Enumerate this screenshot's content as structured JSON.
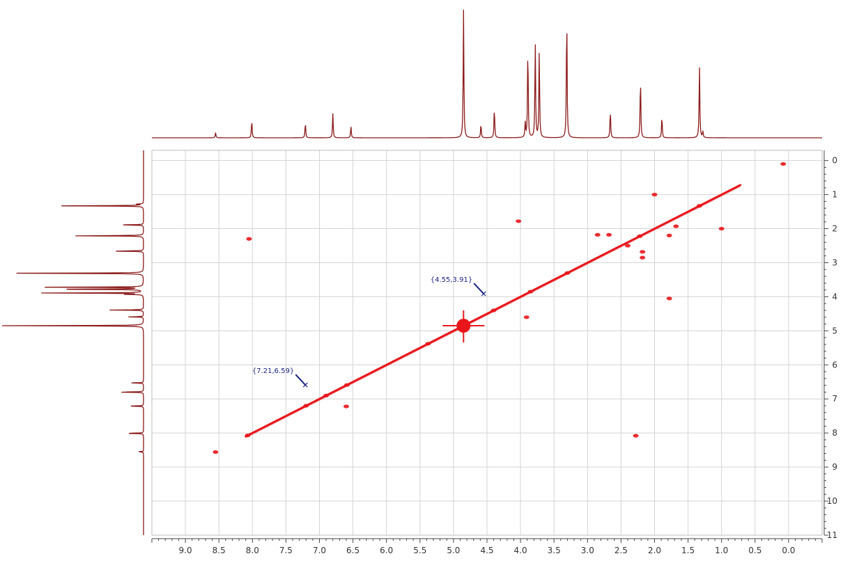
{
  "chart_data": {
    "type": "scatter",
    "subtype": "2D NMR COSY contour plot with projections",
    "title": "",
    "xlabel": "",
    "ylabel": "",
    "x_axis": {
      "range": [
        9.5,
        -0.5
      ],
      "reversed": true,
      "ticks": [
        9.0,
        8.5,
        8.0,
        7.5,
        7.0,
        6.5,
        6.0,
        5.5,
        5.0,
        4.5,
        4.0,
        3.5,
        3.0,
        2.5,
        2.0,
        1.5,
        1.0,
        0.5,
        0.0
      ],
      "tick_labels": [
        "9.0",
        "8.5",
        "8.0",
        "7.5",
        "7.0",
        "6.5",
        "6.0",
        "5.5",
        "5.0",
        "4.5",
        "4.0",
        "3.5",
        "3.0",
        "2.5",
        "2.0",
        "1.5",
        "1.0",
        "0.5",
        "0.0"
      ]
    },
    "y_axis": {
      "range": [
        -0.3,
        11
      ],
      "reversed": true,
      "position": "right",
      "ticks": [
        0,
        1,
        2,
        3,
        4,
        5,
        6,
        7,
        8,
        9,
        10,
        11
      ],
      "tick_labels": [
        "0",
        "1",
        "2",
        "3",
        "4",
        "5",
        "6",
        "7",
        "8",
        "9",
        "10",
        "11"
      ]
    },
    "grid": true,
    "colors": {
      "contour": "#e8161b",
      "spectrum": "#8b1a1a",
      "annotation": "#1a237e",
      "grid": "#d4d4d4",
      "axis": "#444444"
    },
    "diagonal": {
      "from": [
        8.1,
        8.1
      ],
      "to": [
        0.72,
        0.72
      ]
    },
    "annotations": [
      {
        "label": "{7.21,6.59}",
        "x": 7.21,
        "y": 6.59
      },
      {
        "label": "{4.55,3.91}",
        "x": 4.55,
        "y": 3.91
      }
    ],
    "spectrum_1d": [
      {
        "ppm": 8.55,
        "intensity": 0.04
      },
      {
        "ppm": 8.01,
        "intensity": 0.14
      },
      {
        "ppm": 7.21,
        "intensity": 0.12
      },
      {
        "ppm": 6.8,
        "intensity": 0.19
      },
      {
        "ppm": 6.53,
        "intensity": 0.09
      },
      {
        "ppm": 4.85,
        "intensity": 1.0
      },
      {
        "ppm": 4.59,
        "intensity": 0.11
      },
      {
        "ppm": 4.39,
        "intensity": 0.24
      },
      {
        "ppm": 3.93,
        "intensity": 0.12
      },
      {
        "ppm": 3.89,
        "intensity": 0.73
      },
      {
        "ppm": 3.78,
        "intensity": 0.76
      },
      {
        "ppm": 3.72,
        "intensity": 0.69
      },
      {
        "ppm": 3.31,
        "intensity": 1.0
      },
      {
        "ppm": 2.66,
        "intensity": 0.22
      },
      {
        "ppm": 2.21,
        "intensity": 0.48
      },
      {
        "ppm": 1.89,
        "intensity": 0.17
      },
      {
        "ppm": 1.33,
        "intensity": 0.58
      },
      {
        "ppm": 1.28,
        "intensity": 0.05
      }
    ],
    "cross_peaks": [
      {
        "x": 0.08,
        "y": 0.1
      },
      {
        "x": 2.0,
        "y": 1.0
      },
      {
        "x": 1.0,
        "y": 2.0
      },
      {
        "x": 4.03,
        "y": 1.78
      },
      {
        "x": 8.05,
        "y": 2.3
      },
      {
        "x": 2.68,
        "y": 2.18
      },
      {
        "x": 2.18,
        "y": 2.68
      },
      {
        "x": 2.85,
        "y": 2.18
      },
      {
        "x": 2.22,
        "y": 2.22
      },
      {
        "x": 1.78,
        "y": 2.2
      },
      {
        "x": 1.68,
        "y": 1.93
      },
      {
        "x": 2.4,
        "y": 2.5
      },
      {
        "x": 2.18,
        "y": 2.85
      },
      {
        "x": 3.91,
        "y": 4.6
      },
      {
        "x": 1.78,
        "y": 4.05
      },
      {
        "x": 6.6,
        "y": 7.22
      },
      {
        "x": 2.28,
        "y": 8.08
      },
      {
        "x": 8.55,
        "y": 8.56
      },
      {
        "x": 5.38,
        "y": 5.38
      },
      {
        "x": 4.85,
        "y": 4.85
      },
      {
        "x": 3.3,
        "y": 3.3
      },
      {
        "x": 3.85,
        "y": 3.85
      },
      {
        "x": 4.4,
        "y": 4.4
      },
      {
        "x": 1.33,
        "y": 1.33
      },
      {
        "x": 8.07,
        "y": 8.07
      },
      {
        "x": 6.9,
        "y": 6.9
      },
      {
        "x": 7.2,
        "y": 7.2
      },
      {
        "x": 6.59,
        "y": 6.59
      }
    ]
  }
}
